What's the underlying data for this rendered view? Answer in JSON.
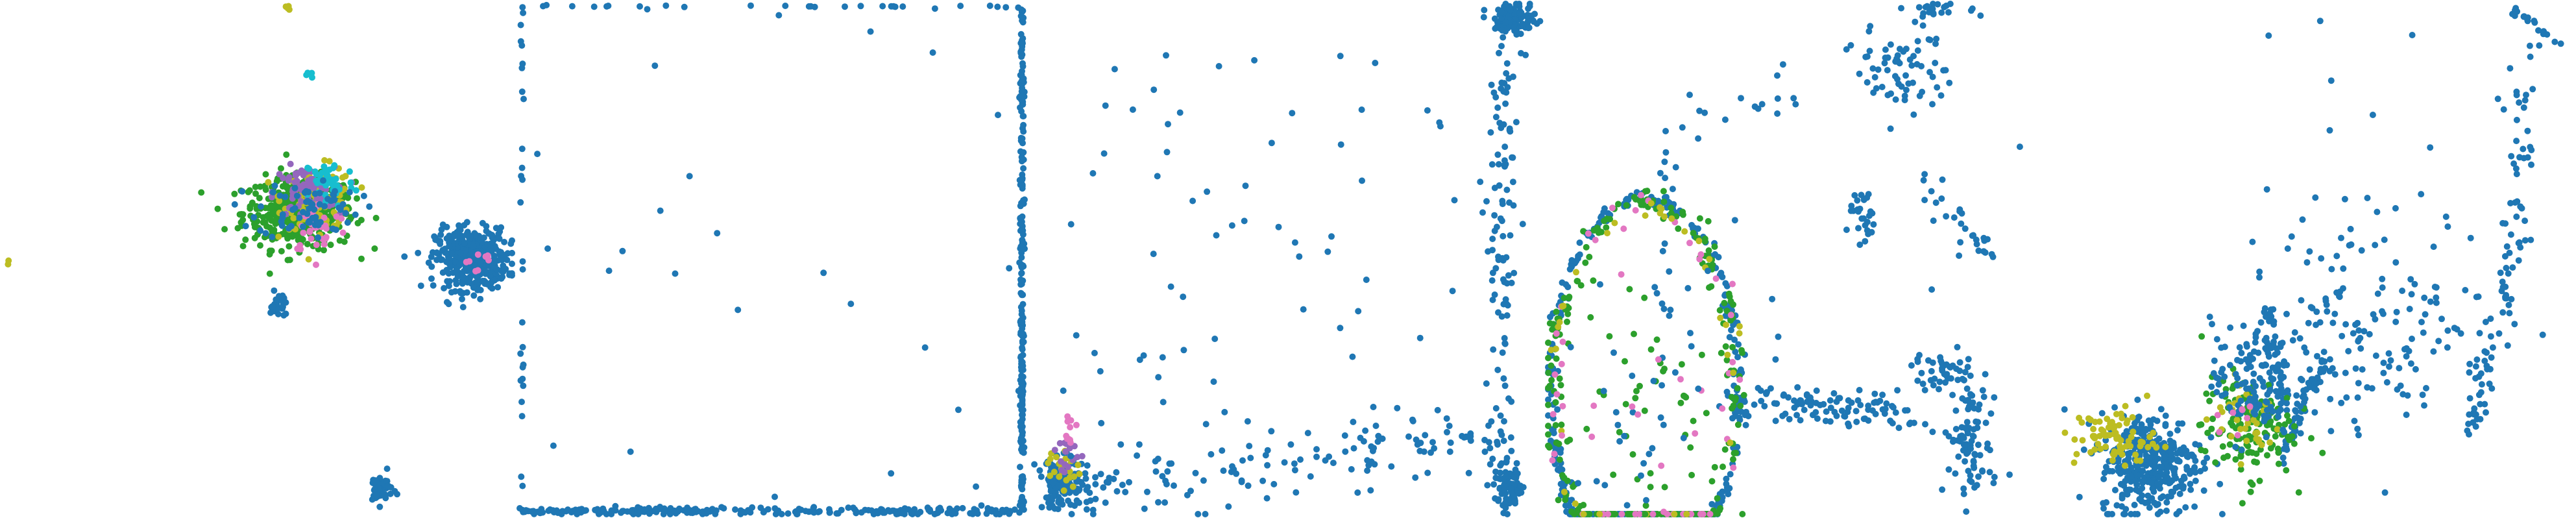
{
  "colors": {
    "blue": "#1f77b4",
    "green": "#2ca02c",
    "olive": "#bcbd22",
    "pink": "#e377c2",
    "purple": "#9467bd",
    "cyan": "#17becf"
  },
  "chart_data": [
    {
      "type": "scatter",
      "title": "",
      "xlabel": "",
      "ylabel": "",
      "xlim": [
        0,
        1
      ],
      "ylim": [
        0,
        1
      ],
      "grid": false,
      "clusters": [
        {
          "color": "green",
          "cx": 0.58,
          "cy": 0.59,
          "rx": 0.11,
          "ry": 0.07,
          "n": 420
        },
        {
          "color": "olive",
          "cx": 0.62,
          "cy": 0.62,
          "rx": 0.07,
          "ry": 0.06,
          "n": 110
        },
        {
          "color": "purple",
          "cx": 0.59,
          "cy": 0.63,
          "rx": 0.06,
          "ry": 0.05,
          "n": 70
        },
        {
          "color": "cyan",
          "cx": 0.64,
          "cy": 0.65,
          "rx": 0.05,
          "ry": 0.05,
          "n": 45
        },
        {
          "color": "pink",
          "cx": 0.62,
          "cy": 0.56,
          "rx": 0.06,
          "ry": 0.05,
          "n": 30
        },
        {
          "color": "blue",
          "cx": 0.6,
          "cy": 0.6,
          "rx": 0.1,
          "ry": 0.06,
          "n": 70
        },
        {
          "color": "blue",
          "cx": 0.92,
          "cy": 0.5,
          "rx": 0.07,
          "ry": 0.06,
          "n": 420
        },
        {
          "color": "pink",
          "cx": 0.93,
          "cy": 0.5,
          "rx": 0.03,
          "ry": 0.02,
          "n": 8
        },
        {
          "color": "blue",
          "cx": 0.54,
          "cy": 0.41,
          "rx": 0.015,
          "ry": 0.025,
          "n": 30
        },
        {
          "color": "blue",
          "cx": 0.74,
          "cy": 0.05,
          "rx": 0.025,
          "ry": 0.03,
          "n": 45
        },
        {
          "color": "olive",
          "cx": 0.56,
          "cy": 0.995,
          "rx": 0.01,
          "ry": 0.005,
          "n": 6
        },
        {
          "color": "cyan",
          "cx": 0.6,
          "cy": 0.86,
          "rx": 0.008,
          "ry": 0.008,
          "n": 4
        },
        {
          "color": "olive",
          "cx": 0.01,
          "cy": 0.49,
          "rx": 0.004,
          "ry": 0.005,
          "n": 2
        }
      ]
    },
    {
      "type": "scatter",
      "title": "",
      "xlabel": "",
      "ylabel": "",
      "xlim": [
        0,
        1
      ],
      "ylim": [
        0,
        1
      ],
      "grid": false,
      "lines": [
        {
          "color": "blue",
          "x0": 0.0,
          "y0": 0.005,
          "x1": 1.0,
          "y1": 0.005,
          "n": 260,
          "jitter": 0.004
        },
        {
          "color": "blue",
          "x0": 0.995,
          "y0": 0.0,
          "x1": 0.995,
          "y1": 1.0,
          "n": 230,
          "jitter": 0.002
        },
        {
          "color": "blue",
          "x0": 0.0,
          "y0": 0.995,
          "x1": 1.0,
          "y1": 0.995,
          "n": 28,
          "jitter": 0.002
        },
        {
          "color": "blue",
          "x0": 0.005,
          "y0": 0.0,
          "x1": 0.005,
          "y1": 1.0,
          "n": 28,
          "jitter": 0.002
        }
      ],
      "clusters": [
        {
          "color": "blue",
          "cx": 0.5,
          "cy": 0.5,
          "rx": 0.5,
          "ry": 0.5,
          "n": 26,
          "uniform": true
        }
      ]
    },
    {
      "type": "scatter",
      "title": "",
      "xlabel": "",
      "ylabel": "",
      "xlim": [
        0,
        1
      ],
      "ylim": [
        0,
        1
      ],
      "grid": false,
      "clusters": [
        {
          "color": "blue",
          "cx": 0.06,
          "cy": 0.06,
          "rx": 0.05,
          "ry": 0.05,
          "n": 140
        },
        {
          "color": "olive",
          "cx": 0.06,
          "cy": 0.09,
          "rx": 0.03,
          "ry": 0.04,
          "n": 22
        },
        {
          "color": "purple",
          "cx": 0.07,
          "cy": 0.12,
          "rx": 0.025,
          "ry": 0.04,
          "n": 16
        },
        {
          "color": "pink",
          "cx": 0.07,
          "cy": 0.16,
          "rx": 0.02,
          "ry": 0.04,
          "n": 10
        },
        {
          "color": "blue",
          "cx": 0.95,
          "cy": 0.97,
          "rx": 0.04,
          "ry": 0.03,
          "n": 120
        },
        {
          "color": "blue",
          "cx": 0.94,
          "cy": 0.05,
          "rx": 0.03,
          "ry": 0.04,
          "n": 80
        },
        {
          "color": "blue",
          "cx": 0.5,
          "cy": 0.5,
          "rx": 0.45,
          "ry": 0.45,
          "n": 75,
          "uniform": true
        }
      ],
      "lines": [
        {
          "color": "blue",
          "x0": 0.92,
          "y0": 0.08,
          "x1": 0.93,
          "y1": 0.92,
          "n": 110,
          "jitter": 0.015
        },
        {
          "color": "blue",
          "x0": 0.08,
          "y0": 0.04,
          "x1": 0.9,
          "y1": 0.16,
          "n": 130,
          "jitter": 0.035
        }
      ]
    },
    {
      "type": "scatter",
      "title": "",
      "xlabel": "",
      "ylabel": "",
      "xlim": [
        0,
        1
      ],
      "ylim": [
        0,
        1
      ],
      "grid": false,
      "rings": [
        {
          "color": "blue",
          "cx": 0.19,
          "cy": 0.24,
          "rx": 0.185,
          "ry": 0.38,
          "n": 320,
          "jitter": 0.006
        },
        {
          "color": "green",
          "cx": 0.19,
          "cy": 0.24,
          "rx": 0.18,
          "ry": 0.37,
          "n": 230,
          "jitter": 0.012
        },
        {
          "color": "pink",
          "cx": 0.19,
          "cy": 0.24,
          "rx": 0.175,
          "ry": 0.36,
          "n": 45,
          "jitter": 0.012
        },
        {
          "color": "olive",
          "cx": 0.19,
          "cy": 0.24,
          "rx": 0.175,
          "ry": 0.36,
          "n": 35,
          "jitter": 0.012
        }
      ],
      "clusters": [
        {
          "color": "green",
          "cx": 0.19,
          "cy": 0.24,
          "rx": 0.13,
          "ry": 0.28,
          "n": 45
        },
        {
          "color": "blue",
          "cx": 0.19,
          "cy": 0.24,
          "rx": 0.13,
          "ry": 0.28,
          "n": 30
        },
        {
          "color": "pink",
          "cx": 0.19,
          "cy": 0.24,
          "rx": 0.12,
          "ry": 0.26,
          "n": 12
        },
        {
          "color": "blue",
          "cx": 0.7,
          "cy": 0.88,
          "rx": 0.09,
          "ry": 0.09,
          "n": 70
        },
        {
          "color": "blue",
          "cx": 0.78,
          "cy": 0.99,
          "rx": 0.06,
          "ry": 0.015,
          "n": 20
        },
        {
          "color": "blue",
          "cx": 0.83,
          "cy": 0.15,
          "rx": 0.05,
          "ry": 0.12,
          "n": 90
        },
        {
          "color": "blue",
          "cx": 0.78,
          "cy": 0.28,
          "rx": 0.06,
          "ry": 0.04,
          "n": 40
        },
        {
          "color": "blue",
          "cx": 0.62,
          "cy": 0.58,
          "rx": 0.03,
          "ry": 0.05,
          "n": 28
        },
        {
          "color": "blue",
          "cx": 0.5,
          "cy": 0.5,
          "rx": 0.45,
          "ry": 0.45,
          "n": 20,
          "uniform": true
        }
      ],
      "lines": [
        {
          "color": "blue",
          "x0": 0.36,
          "y0": 0.22,
          "x1": 0.72,
          "y1": 0.2,
          "n": 110,
          "jitter": 0.018
        },
        {
          "color": "blue",
          "x0": 0.25,
          "y0": 0.76,
          "x1": 0.48,
          "y1": 0.82,
          "n": 14,
          "jitter": 0.02
        },
        {
          "color": "blue",
          "x0": 0.23,
          "y0": 0.4,
          "x1": 0.24,
          "y1": 0.78,
          "n": 12,
          "jitter": 0.01
        },
        {
          "color": "blue",
          "x0": 0.74,
          "y0": 0.65,
          "x1": 0.88,
          "y1": 0.48,
          "n": 28,
          "jitter": 0.02
        }
      ]
    },
    {
      "type": "scatter",
      "title": "",
      "xlabel": "",
      "ylabel": "",
      "xlim": [
        0,
        1
      ],
      "ylim": [
        0,
        1
      ],
      "grid": false,
      "clusters": [
        {
          "color": "blue",
          "cx": 0.17,
          "cy": 0.1,
          "rx": 0.1,
          "ry": 0.1,
          "n": 340
        },
        {
          "color": "olive",
          "cx": 0.1,
          "cy": 0.15,
          "rx": 0.08,
          "ry": 0.06,
          "n": 75
        },
        {
          "color": "green",
          "cx": 0.36,
          "cy": 0.17,
          "rx": 0.09,
          "ry": 0.1,
          "n": 140
        },
        {
          "color": "olive",
          "cx": 0.36,
          "cy": 0.19,
          "rx": 0.07,
          "ry": 0.08,
          "n": 35
        },
        {
          "color": "blue",
          "cx": 0.37,
          "cy": 0.26,
          "rx": 0.08,
          "ry": 0.12,
          "n": 120
        },
        {
          "color": "pink",
          "cx": 0.34,
          "cy": 0.2,
          "rx": 0.05,
          "ry": 0.07,
          "n": 8
        },
        {
          "color": "blue",
          "cx": 0.62,
          "cy": 0.38,
          "rx": 0.25,
          "ry": 0.22,
          "n": 160
        },
        {
          "color": "blue",
          "cx": 0.6,
          "cy": 0.8,
          "rx": 0.35,
          "ry": 0.18,
          "n": 10,
          "uniform": true
        }
      ],
      "lines": [
        {
          "color": "blue",
          "x0": 0.42,
          "y0": 0.1,
          "x1": 0.52,
          "y1": 0.32,
          "n": 55,
          "jitter": 0.008
        },
        {
          "color": "blue",
          "x0": 0.4,
          "y0": 0.4,
          "x1": 0.43,
          "y1": 0.21,
          "n": 40,
          "jitter": 0.008
        },
        {
          "color": "blue",
          "x0": 0.8,
          "y0": 0.14,
          "x1": 0.89,
          "y1": 0.56,
          "n": 60,
          "jitter": 0.012
        },
        {
          "color": "blue",
          "x0": 0.89,
          "y0": 0.56,
          "x1": 0.91,
          "y1": 0.96,
          "n": 35,
          "jitter": 0.015
        },
        {
          "color": "blue",
          "x0": 0.88,
          "y0": 0.99,
          "x1": 0.98,
          "y1": 0.92,
          "n": 18,
          "jitter": 0.005
        }
      ]
    }
  ]
}
